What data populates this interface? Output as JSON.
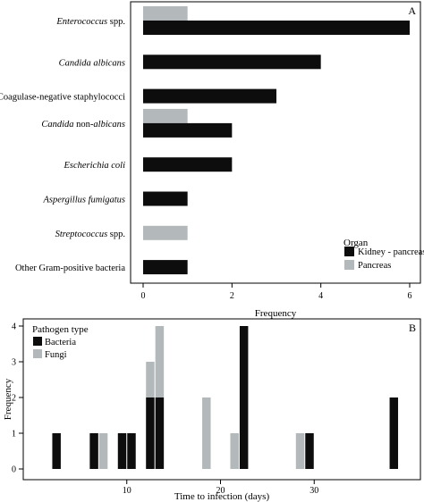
{
  "colors": {
    "dark": "#0d0d0d",
    "light": "#b3b9ba",
    "axis": "#000000"
  },
  "chart_data": [
    {
      "type": "bar",
      "orientation": "horizontal",
      "panel_label": "A",
      "xlabel": "Frequency",
      "xlim": [
        0,
        6
      ],
      "xticks": [
        "0",
        "2",
        "4",
        "6"
      ],
      "legend": {
        "title": "Organ",
        "placement": "bottom-right",
        "entries": [
          "Kidney - pancreas",
          "Pancreas"
        ]
      },
      "categories": [
        {
          "parts": [
            {
              "t": "Enterococcus",
              "italic": true
            },
            {
              "t": " spp.",
              "italic": false
            }
          ],
          "values": {
            "Kidney - pancreas": 6,
            "Pancreas": 1
          }
        },
        {
          "parts": [
            {
              "t": "Candida albicans",
              "italic": true
            }
          ],
          "values": {
            "Kidney - pancreas": 4,
            "Pancreas": 0
          }
        },
        {
          "parts": [
            {
              "t": "Coagulase-negative staphylococci",
              "italic": false
            }
          ],
          "values": {
            "Kidney - pancreas": 3,
            "Pancreas": 0
          }
        },
        {
          "parts": [
            {
              "t": "Candida",
              "italic": true
            },
            {
              "t": " non-",
              "italic": false
            },
            {
              "t": "albicans",
              "italic": true
            }
          ],
          "values": {
            "Kidney - pancreas": 2,
            "Pancreas": 1
          }
        },
        {
          "parts": [
            {
              "t": "Escherichia coli",
              "italic": true
            }
          ],
          "values": {
            "Kidney - pancreas": 2,
            "Pancreas": 0
          }
        },
        {
          "parts": [
            {
              "t": "Aspergillus fumigatus",
              "italic": true
            }
          ],
          "values": {
            "Kidney - pancreas": 1,
            "Pancreas": 0
          }
        },
        {
          "parts": [
            {
              "t": "Streptococcus",
              "italic": true
            },
            {
              "t": " spp.",
              "italic": false
            }
          ],
          "values": {
            "Kidney - pancreas": 0,
            "Pancreas": 1
          }
        },
        {
          "parts": [
            {
              "t": "Other Gram-positive bacteria",
              "italic": false
            }
          ],
          "values": {
            "Kidney - pancreas": 1,
            "Pancreas": 0
          }
        }
      ]
    },
    {
      "type": "bar",
      "stacked": true,
      "panel_label": "B",
      "xlabel": "Time to infection (days)",
      "ylabel": "Frequency",
      "xlim": [
        0,
        40
      ],
      "ylim": [
        0,
        4
      ],
      "xticks": [
        "10",
        "20",
        "30"
      ],
      "yticks": [
        "0",
        "1",
        "2",
        "3",
        "4"
      ],
      "legend": {
        "title": "Pathogen type",
        "placement": "top-left",
        "entries": [
          "Bacteria",
          "Fungi"
        ]
      },
      "x": [
        2,
        6,
        7,
        9,
        10,
        12,
        13,
        18,
        21,
        22,
        28,
        29,
        38
      ],
      "series": [
        {
          "name": "Bacteria",
          "values": [
            1,
            1,
            0,
            1,
            1,
            2,
            2,
            0,
            0,
            4,
            0,
            1,
            2
          ]
        },
        {
          "name": "Fungi",
          "values": [
            0,
            0,
            1,
            0,
            0,
            1,
            2,
            2,
            1,
            0,
            1,
            0,
            0
          ]
        }
      ]
    }
  ]
}
